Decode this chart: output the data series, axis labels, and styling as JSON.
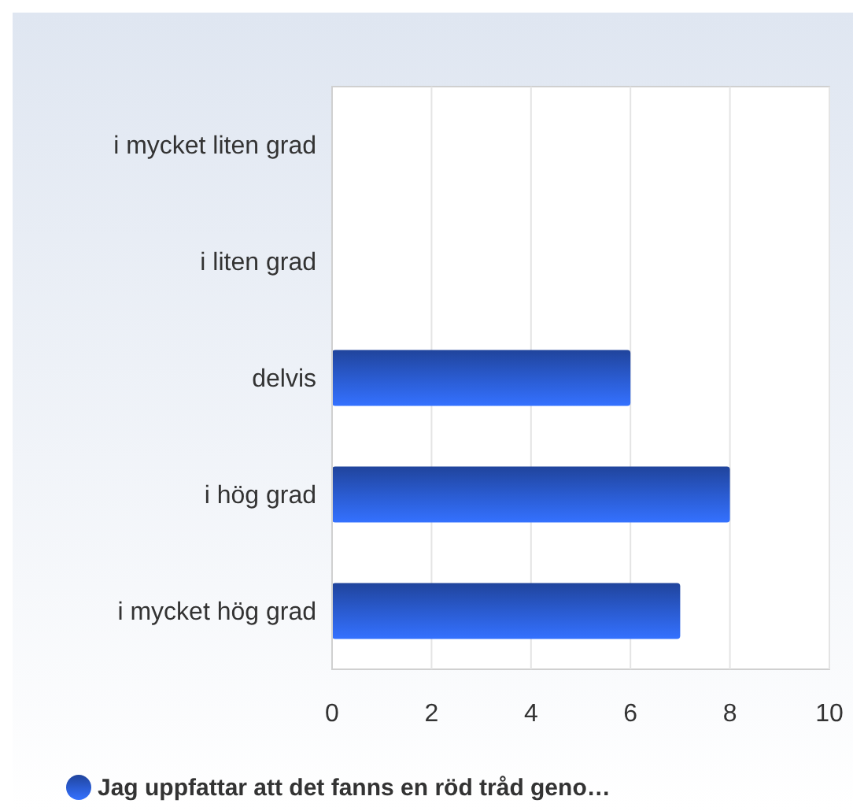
{
  "chart_data": {
    "type": "bar",
    "orientation": "horizontal",
    "categories": [
      "i mycket liten grad",
      "i liten grad",
      "delvis",
      "i hög grad",
      "i mycket hög grad"
    ],
    "series": [
      {
        "name": "Jag uppfattar att det fanns en röd tråd geno…",
        "color": "#2a5bd0",
        "values": [
          0,
          0,
          6,
          8,
          7
        ]
      }
    ],
    "xlim": [
      0,
      10
    ],
    "xticks": [
      0,
      2,
      4,
      6,
      8,
      10
    ],
    "grid": "x",
    "legend": "bottom"
  }
}
